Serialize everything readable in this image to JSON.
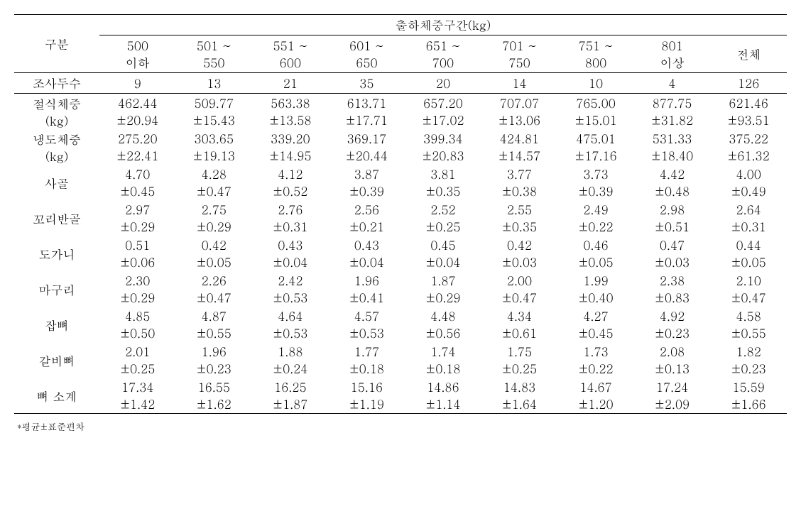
{
  "header": {
    "category_label": "구분",
    "group_header": "출하체중구간(kg)",
    "columns": [
      "500\n이하",
      "501 ~\n550",
      "551 ~\n600",
      "601 ~\n650",
      "651 ~\n700",
      "701 ~\n750",
      "751 ~\n800",
      "801\n이상",
      "전체"
    ]
  },
  "count_row": {
    "label": "조사두수",
    "values": [
      "9",
      "13",
      "21",
      "35",
      "20",
      "14",
      "10",
      "4",
      "126"
    ]
  },
  "data_rows": [
    {
      "label": "절식체중\n(kg)",
      "means": [
        "462.44",
        "509.77",
        "563.38",
        "613.71",
        "657.20",
        "707.07",
        "765.00",
        "877.75",
        "621.46"
      ],
      "stds": [
        "±20.94",
        "±15.43",
        "±13.58",
        "±17.71",
        "±17.02",
        "±13.06",
        "±15.01",
        "±31.82",
        "±93.51"
      ]
    },
    {
      "label": "냉도체중\n(kg)",
      "means": [
        "275.20",
        "303.65",
        "339.20",
        "369.17",
        "399.34",
        "424.81",
        "475.01",
        "531.33",
        "375.22"
      ],
      "stds": [
        "±22.41",
        "±19.13",
        "±14.95",
        "±20.44",
        "±20.83",
        "±14.57",
        "±17.16",
        "±18.40",
        "±61.32"
      ]
    },
    {
      "label": "사골",
      "means": [
        "4.70",
        "4.28",
        "4.12",
        "3.87",
        "3.81",
        "3.77",
        "3.73",
        "4.42",
        "4.00"
      ],
      "stds": [
        "±0.45",
        "±0.47",
        "±0.52",
        "±0.39",
        "±0.35",
        "±0.38",
        "±0.39",
        "±0.48",
        "±0.49"
      ]
    },
    {
      "label": "꼬리반골",
      "means": [
        "2.97",
        "2.75",
        "2.76",
        "2.56",
        "2.52",
        "2.55",
        "2.49",
        "2.98",
        "2.64"
      ],
      "stds": [
        "±0.29",
        "±0.29",
        "±0.31",
        "±0.21",
        "±0.25",
        "±0.35",
        "±0.22",
        "±0.51",
        "±0.31"
      ]
    },
    {
      "label": "도가니",
      "means": [
        "0.51",
        "0.42",
        "0.43",
        "0.43",
        "0.45",
        "0.42",
        "0.46",
        "0.47",
        "0.44"
      ],
      "stds": [
        "±0.06",
        "±0.05",
        "±0.04",
        "±0.04",
        "±0.04",
        "±0.03",
        "±0.05",
        "±0.03",
        "±0.05"
      ]
    },
    {
      "label": "마구리",
      "means": [
        "2.30",
        "2.26",
        "2.42",
        "1.96",
        "1.87",
        "2.00",
        "1.99",
        "2.38",
        "2.10"
      ],
      "stds": [
        "±0.29",
        "±0.47",
        "±0.53",
        "±0.41",
        "±0.29",
        "±0.47",
        "±0.40",
        "±0.83",
        "±0.47"
      ]
    },
    {
      "label": "잡뼈",
      "means": [
        "4.85",
        "4.87",
        "4.64",
        "4.57",
        "4.48",
        "4.34",
        "4.27",
        "4.92",
        "4.58"
      ],
      "stds": [
        "±0.50",
        "±0.55",
        "±0.53",
        "±0.53",
        "±0.56",
        "±0.61",
        "±0.45",
        "±0.23",
        "±0.55"
      ]
    },
    {
      "label": "갈비뼈",
      "means": [
        "2.01",
        "1.96",
        "1.88",
        "1.77",
        "1.74",
        "1.75",
        "1.73",
        "2.08",
        "1.82"
      ],
      "stds": [
        "±0.25",
        "±0.23",
        "±0.24",
        "±0.18",
        "±0.18",
        "±0.25",
        "±0.22",
        "±0.13",
        "±0.23"
      ]
    },
    {
      "label": "뼈 소계",
      "means": [
        "17.34",
        "16.55",
        "16.25",
        "15.16",
        "14.86",
        "14.83",
        "14.67",
        "17.24",
        "15.59"
      ],
      "stds": [
        "±1.42",
        "±1.62",
        "±1.87",
        "±1.19",
        "±1.14",
        "±1.64",
        "±1.20",
        "±2.09",
        "±1.66"
      ]
    }
  ],
  "footnote": "*평균±표준편차",
  "style": {
    "background_color": "#ffffff",
    "text_color": "#000000",
    "border_color": "#000000",
    "font_family": "Batang, serif",
    "base_font_size": 17,
    "footnote_font_size": 13,
    "num_columns": 9
  }
}
